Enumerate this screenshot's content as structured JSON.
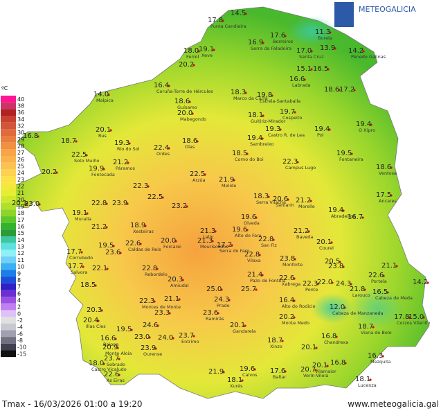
{
  "header": {
    "logo": "METEOGALICIA"
  },
  "legend": {
    "unit": "ºC",
    "labels": [
      "40",
      "38",
      "36",
      "34",
      "32",
      "30",
      "29",
      "28",
      "27",
      "26",
      "25",
      "24",
      "23",
      "22",
      "21",
      "20",
      "19",
      "18",
      "17",
      "16",
      "15",
      "14",
      "13",
      "12",
      "11",
      "10",
      "9",
      "8",
      "7",
      "6",
      "4",
      "2",
      "0",
      "-2",
      "-4",
      "-6",
      "-8",
      "-10",
      "-15"
    ]
  },
  "stations": [
    {
      "value": "17.8",
      "name": "Punta Candieira"
    },
    {
      "value": "14.5"
    },
    {
      "value": "11.3",
      "name": "Burela"
    },
    {
      "value": "13.9"
    },
    {
      "value": "14.2",
      "name": "Penedo Galinas"
    },
    {
      "value": "16.9",
      "name": "Serra da Faladoira"
    },
    {
      "value": "17.6",
      "name": "Borreiros"
    },
    {
      "value": "17.0",
      "name": "Santa Cruz"
    },
    {
      "value": "18.0",
      "name": "Ferrol"
    },
    {
      "value": "19.1",
      "name": "Xeve"
    },
    {
      "value": "20.2"
    },
    {
      "value": "15.1"
    },
    {
      "value": "16.5"
    },
    {
      "value": "16.6",
      "name": "Labrada"
    },
    {
      "value": "16.4",
      "name": "Coruña-Torre de Hércules"
    },
    {
      "value": "14.0",
      "name": "Malpica"
    },
    {
      "value": "18.3",
      "name": "Marco da Curra"
    },
    {
      "value": "19.8",
      "name": "Estrela-Santaballa"
    },
    {
      "value": "18.6"
    },
    {
      "value": "17.2"
    },
    {
      "value": "18.6",
      "name": "Guísamo"
    },
    {
      "value": "20.0",
      "name": "Mabegondo"
    },
    {
      "value": "18.1",
      "name": "Guitiriz-Mirador"
    },
    {
      "value": "19.7",
      "name": "Cospeito"
    },
    {
      "value": "19.4",
      "name": "O Xipro"
    },
    {
      "value": "20.1",
      "name": "Rus"
    },
    {
      "value": "19.3",
      "name": "Castro R. de Lea"
    },
    {
      "value": "19.4",
      "name": "Pol"
    },
    {
      "value": "16.8"
    },
    {
      "value": "18.7"
    },
    {
      "value": "19.3",
      "name": "Río do Sol"
    },
    {
      "value": "18.6",
      "name": "Olas"
    },
    {
      "value": "19.4",
      "name": "Sambreixo"
    },
    {
      "value": "22.4",
      "name": "Ordes"
    },
    {
      "value": "19.5",
      "name": "Fontaneira"
    },
    {
      "value": "22.5",
      "name": "Soto Muíño"
    },
    {
      "value": "21.2",
      "name": "Páramos"
    },
    {
      "value": "18.5",
      "name": "Corno do Boi"
    },
    {
      "value": "22.3",
      "name": "Campus Lugo"
    },
    {
      "value": "18.6",
      "name": "Ventosa"
    },
    {
      "value": "20.2"
    },
    {
      "value": "19.9",
      "name": "Fontecada"
    },
    {
      "value": "22.5",
      "name": "Arzúa"
    },
    {
      "value": "21.9",
      "name": "Melide"
    },
    {
      "value": "22.3"
    },
    {
      "value": "17.5",
      "name": "Ancares"
    },
    {
      "value": "20.1"
    },
    {
      "value": "23.0"
    },
    {
      "value": "22.8"
    },
    {
      "value": "23.9"
    },
    {
      "value": "22.5"
    },
    {
      "value": "23.2"
    },
    {
      "value": "18.3",
      "name": "Serra Vilacha"
    },
    {
      "value": "20.6",
      "name": "Samarín"
    },
    {
      "value": "21.2",
      "name": "Morelle"
    },
    {
      "value": "19.4",
      "name": "Abradeiros"
    },
    {
      "value": "16.7"
    },
    {
      "value": "19.1",
      "name": "Muralla"
    },
    {
      "value": "21.2"
    },
    {
      "value": "18.9",
      "name": "Xesteiras"
    },
    {
      "value": "19.6",
      "name": "Olveda"
    },
    {
      "value": "21.3",
      "name": "Lalín"
    },
    {
      "value": "21.2",
      "name": "Baveda"
    },
    {
      "value": "20.0",
      "name": "Forcarei"
    },
    {
      "value": "21.3",
      "name": "Mouriscados"
    },
    {
      "value": "19.6",
      "name": "Alto do Faro"
    },
    {
      "value": "22.8",
      "name": "San Fiz"
    },
    {
      "value": "20.1",
      "name": "Courel"
    },
    {
      "value": "22.6",
      "name": "Caldas de Reis"
    },
    {
      "value": "17.2",
      "name": "Serra do Faro"
    },
    {
      "value": "19.5"
    },
    {
      "value": "22.8",
      "name": "Vilaxa"
    },
    {
      "value": "23.8",
      "name": "Monforte"
    },
    {
      "value": "17.7",
      "name": "Corrubedo"
    },
    {
      "value": "23.6"
    },
    {
      "value": "20.5"
    },
    {
      "value": "17.7",
      "name": "Salvora"
    },
    {
      "value": "22.1"
    },
    {
      "value": "22.8",
      "name": "Rebordelo"
    },
    {
      "value": "23.8"
    },
    {
      "value": "21.1"
    },
    {
      "value": "21.4",
      "name": "Pazo de Fontela"
    },
    {
      "value": "22.6",
      "name": "Xabrega"
    },
    {
      "value": "22.6",
      "name": "Portela"
    },
    {
      "value": "18.5"
    },
    {
      "value": "20.3",
      "name": "Amiudal"
    },
    {
      "value": "22.3",
      "name": "Ponte"
    },
    {
      "value": "22.0"
    },
    {
      "value": "24.3"
    },
    {
      "value": "14.2"
    },
    {
      "value": "25.0"
    },
    {
      "value": "25.7"
    },
    {
      "value": "21.8",
      "name": "Larouco"
    },
    {
      "value": "16.5",
      "name": "Cabeza de Meda"
    },
    {
      "value": "22.3",
      "name": "Montes de Monte"
    },
    {
      "value": "21.1"
    },
    {
      "value": "24.3",
      "name": "Prado"
    },
    {
      "value": "16.4",
      "name": "Alto do Rodicio"
    },
    {
      "value": "20.3"
    },
    {
      "value": "23.3"
    },
    {
      "value": "23.6",
      "name": "Ramirás"
    },
    {
      "value": "12.0",
      "name": "Cabeza de Manzaneda"
    },
    {
      "value": "20.2",
      "name": "Monte Medo"
    },
    {
      "value": "17.8",
      "name": "Corzos Vilariño"
    },
    {
      "value": "15.0"
    },
    {
      "value": "20.4",
      "name": "Illas Cíes"
    },
    {
      "value": "19.5"
    },
    {
      "value": "24.6"
    },
    {
      "value": "20.1",
      "name": "Gandarela"
    },
    {
      "value": "18.7",
      "name": "Viana do Bolo"
    },
    {
      "value": "16.6",
      "name": "Baiona"
    },
    {
      "value": "23.0"
    },
    {
      "value": "24.0"
    },
    {
      "value": "23.7",
      "name": "Entrimo"
    },
    {
      "value": "16.8",
      "name": "Chandrexa"
    },
    {
      "value": "20.9",
      "name": "Monte Aloia"
    },
    {
      "value": "23.9",
      "name": "Ourense"
    },
    {
      "value": "18.7",
      "name": "Xinzo"
    },
    {
      "value": "20.1"
    },
    {
      "value": "16.3",
      "name": "Mezquita"
    },
    {
      "value": "23.7",
      "name": "Sobrado"
    },
    {
      "value": "18.0",
      "name": "Castro Vicaludo"
    },
    {
      "value": "20.1",
      "name": "Vilamaior"
    },
    {
      "value": "16.8"
    },
    {
      "value": "22.6",
      "name": "As Eiras"
    },
    {
      "value": "21.9"
    },
    {
      "value": "19.6",
      "name": "Calvos"
    },
    {
      "value": "17.6",
      "name": "Baltar"
    },
    {
      "value": "20.7",
      "name": "Verín-Vilela"
    },
    {
      "value": "18.1",
      "name": "Xurés"
    },
    {
      "value": "18.1",
      "name": "Lucenza"
    }
  ],
  "footer": {
    "caption": "Tmax - 16/03/2026 01:00 a 19:20",
    "url": "www.meteogalicia.gal"
  }
}
